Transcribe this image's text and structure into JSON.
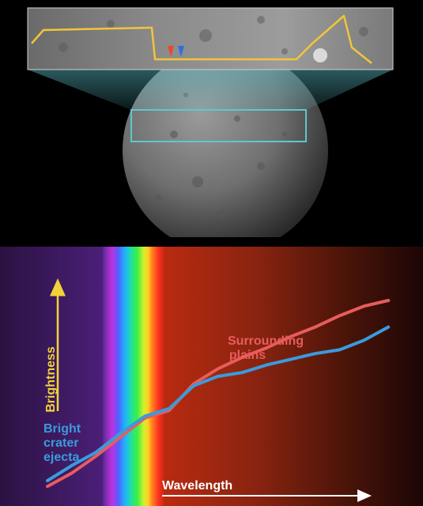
{
  "chart_data": {
    "type": "line",
    "xlabel": "Wavelength",
    "ylabel": "Brightness",
    "xlim": [
      0,
      100
    ],
    "ylim": [
      0,
      100
    ],
    "grid": false,
    "legend": "inline labels",
    "series": [
      {
        "name": "Surrounding plains",
        "color": "#e85c5c",
        "x": [
          0,
          7,
          14,
          21,
          28,
          35,
          42,
          49,
          56,
          63,
          70,
          77,
          84,
          91,
          98
        ],
        "y": [
          2,
          9,
          18,
          28,
          38,
          42,
          56,
          64,
          70,
          75,
          81,
          86,
          92,
          97,
          100
        ]
      },
      {
        "name": "Bright crater ejecta",
        "color": "#3a9bdc",
        "x": [
          0,
          7,
          14,
          21,
          28,
          35,
          42,
          49,
          56,
          63,
          70,
          77,
          84,
          91,
          98
        ],
        "y": [
          5,
          13,
          20,
          30,
          39,
          43,
          55,
          60,
          62,
          66,
          69,
          72,
          74,
          79,
          86
        ]
      }
    ],
    "labels": {
      "plains_line1": "Surrounding",
      "plains_line2": "plains",
      "ejecta_line1": "Bright",
      "ejecta_line2": "crater",
      "ejecta_line3": "ejecta"
    }
  },
  "colors": {
    "axis_arrow": "#f2d23a",
    "x_arrow": "#ffffff",
    "profile": "#f0c53a",
    "box": "#5fc7d0",
    "marker_red": "#e8492c",
    "marker_blue": "#2e6fe0"
  }
}
